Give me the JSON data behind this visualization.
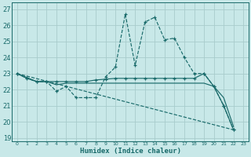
{
  "xlabel": "Humidex (Indice chaleur)",
  "background_color": "#c8e8e8",
  "grid_color": "#a8cccc",
  "line_color": "#1a6b6b",
  "xlim": [
    -0.5,
    23.5
  ],
  "ylim": [
    18.8,
    27.4
  ],
  "yticks": [
    19,
    20,
    21,
    22,
    23,
    24,
    25,
    26,
    27
  ],
  "xticks": [
    0,
    1,
    2,
    3,
    4,
    5,
    6,
    7,
    8,
    9,
    10,
    11,
    12,
    13,
    14,
    15,
    16,
    17,
    18,
    19,
    20,
    21,
    22,
    23
  ],
  "series": [
    {
      "x": [
        0,
        1,
        2,
        3,
        4,
        5,
        6,
        7,
        8,
        9,
        10,
        11,
        12,
        13,
        14,
        15,
        16,
        17,
        18,
        19,
        20,
        21,
        22
      ],
      "y": [
        23.0,
        22.7,
        22.5,
        22.5,
        21.9,
        22.2,
        21.5,
        21.5,
        21.5,
        22.8,
        23.4,
        26.7,
        23.5,
        26.2,
        26.5,
        25.1,
        25.2,
        24.0,
        23.0,
        23.0,
        22.2,
        21.0,
        19.5
      ],
      "linestyle": "--",
      "marker": true
    },
    {
      "x": [
        0,
        1,
        2,
        3,
        4,
        5,
        6,
        7,
        8,
        9,
        10,
        11,
        12,
        13,
        14,
        15,
        16,
        17,
        18,
        19,
        20,
        21,
        22
      ],
      "y": [
        23.0,
        22.75,
        22.5,
        22.5,
        22.5,
        22.5,
        22.5,
        22.5,
        22.6,
        22.65,
        22.7,
        22.7,
        22.7,
        22.7,
        22.7,
        22.7,
        22.7,
        22.7,
        22.7,
        23.0,
        22.2,
        21.0,
        19.5
      ],
      "linestyle": "-",
      "marker": true
    },
    {
      "x": [
        0,
        1,
        2,
        3,
        4,
        5,
        6,
        7,
        8,
        9,
        10,
        11,
        12,
        13,
        14,
        15,
        16,
        17,
        18,
        19,
        20,
        21,
        22
      ],
      "y": [
        23.0,
        22.7,
        22.5,
        22.5,
        22.3,
        22.4,
        22.4,
        22.4,
        22.4,
        22.4,
        22.4,
        22.4,
        22.4,
        22.4,
        22.4,
        22.4,
        22.4,
        22.4,
        22.4,
        22.4,
        22.2,
        21.5,
        19.7
      ],
      "linestyle": "-",
      "marker": false
    },
    {
      "x": [
        0,
        22
      ],
      "y": [
        23.0,
        19.5
      ],
      "linestyle": "--",
      "marker": false
    }
  ]
}
